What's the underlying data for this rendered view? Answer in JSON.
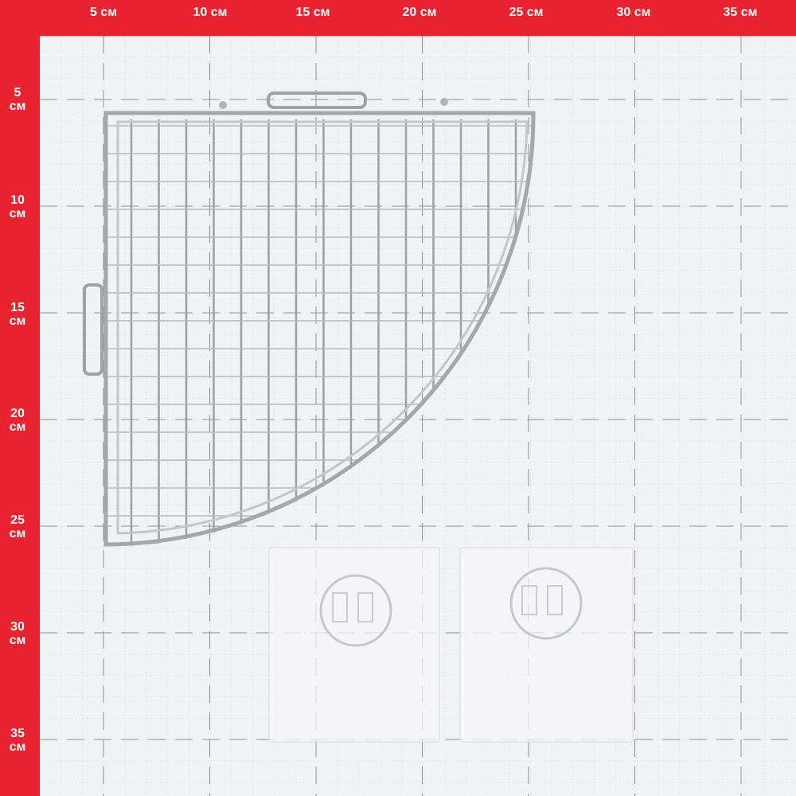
{
  "ruler": {
    "unit": "см",
    "top_labels": [
      "5 см",
      "10 см",
      "15 см",
      "20 см",
      "25 см",
      "30 см",
      "35 см"
    ],
    "left_labels": [
      {
        "num": "5",
        "unit": "см"
      },
      {
        "num": "10",
        "unit": "см"
      },
      {
        "num": "15",
        "unit": "см"
      },
      {
        "num": "20",
        "unit": "см"
      },
      {
        "num": "25",
        "unit": "см"
      },
      {
        "num": "30",
        "unit": "см"
      },
      {
        "num": "35",
        "unit": "см"
      }
    ]
  },
  "colors": {
    "ruler_red": "#e8232f",
    "grid_bg": "#f1f2f3",
    "chrome": "#b8bcc2"
  },
  "objects": [
    "corner-wire-shelf",
    "adhesive-pad",
    "adhesive-pad"
  ]
}
